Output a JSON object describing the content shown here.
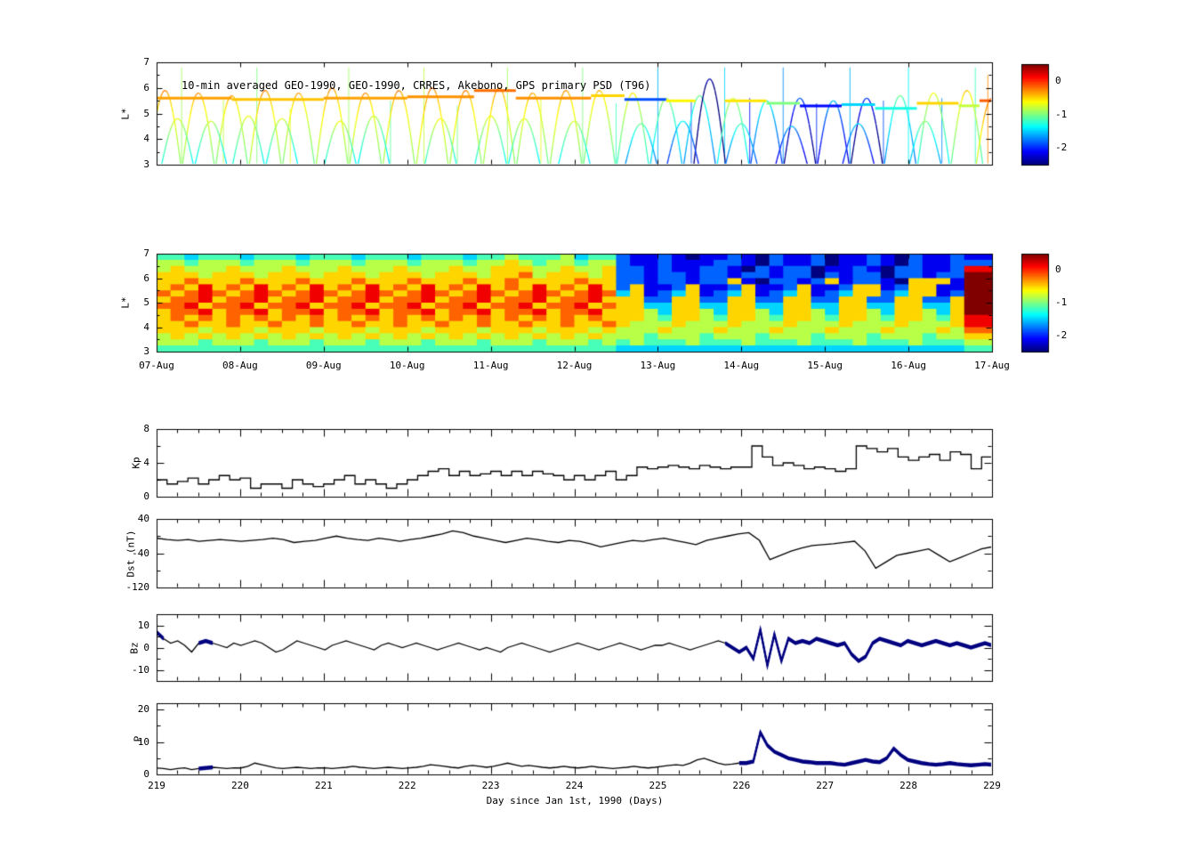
{
  "colors": {
    "line": "#000000",
    "thick_line": "#000080",
    "axis": "#000000",
    "background": "#ffffff"
  },
  "chart_data": [
    {
      "type": "scatter",
      "title": "10-min averaged GEO-1990, GEO-1990, CRRES, Akebono, GPS  primary PSD (T96)",
      "ylabel": "L*",
      "ylim": [
        3,
        7
      ],
      "yticks": [
        3,
        4,
        5,
        6,
        7
      ],
      "xlim": [
        219,
        229
      ],
      "clim": [
        -2.5,
        0.5
      ],
      "colorbar_ticks": [
        0,
        -1,
        -2
      ],
      "arcs": [
        [
          219.1,
          5.9,
          -0.2
        ],
        [
          219.5,
          5.8,
          -0.25
        ],
        [
          219.9,
          5.7,
          -0.3
        ],
        [
          220.3,
          5.9,
          -0.2
        ],
        [
          220.7,
          5.8,
          -0.3
        ],
        [
          221.1,
          6.0,
          -0.2
        ],
        [
          221.5,
          5.8,
          -0.25
        ],
        [
          221.9,
          5.9,
          -0.2
        ],
        [
          222.3,
          6.0,
          -0.15
        ],
        [
          222.7,
          5.9,
          -0.2
        ],
        [
          223.1,
          6.0,
          -0.2
        ],
        [
          223.5,
          5.8,
          -0.3
        ],
        [
          223.9,
          5.9,
          -0.25
        ],
        [
          224.3,
          5.9,
          -0.35
        ],
        [
          224.7,
          5.8,
          -0.5
        ],
        [
          225.1,
          5.6,
          -0.8
        ],
        [
          225.5,
          5.7,
          -1.0
        ],
        [
          225.62,
          6.35,
          -2.3
        ],
        [
          225.9,
          5.6,
          -0.7
        ],
        [
          226.3,
          5.5,
          -1.2
        ],
        [
          226.7,
          5.6,
          -1.8
        ],
        [
          227.1,
          5.5,
          -1.5
        ],
        [
          227.5,
          5.6,
          -1.9
        ],
        [
          227.9,
          5.7,
          -1.0
        ],
        [
          228.3,
          5.8,
          -0.6
        ],
        [
          228.7,
          5.9,
          -0.4
        ],
        [
          229.0,
          5.6,
          -0.1
        ],
        [
          219.25,
          4.8,
          -0.6
        ],
        [
          219.65,
          4.7,
          -0.7
        ],
        [
          220.1,
          4.9,
          -0.6
        ],
        [
          220.5,
          4.8,
          -0.65
        ],
        [
          221.2,
          4.7,
          -0.6
        ],
        [
          221.6,
          4.9,
          -0.7
        ],
        [
          222.4,
          4.8,
          -0.55
        ],
        [
          223.0,
          4.9,
          -0.6
        ],
        [
          223.4,
          4.8,
          -0.65
        ],
        [
          224.0,
          4.7,
          -0.7
        ],
        [
          224.8,
          4.6,
          -1.0
        ],
        [
          225.3,
          4.7,
          -1.3
        ],
        [
          226.0,
          4.6,
          -1.1
        ],
        [
          226.6,
          4.5,
          -1.5
        ],
        [
          227.4,
          4.6,
          -1.4
        ],
        [
          228.2,
          4.7,
          -0.9
        ]
      ],
      "geo_segments": [
        [
          219.0,
          219.9,
          5.6,
          -0.35
        ],
        [
          219.9,
          221.0,
          5.55,
          -0.45
        ],
        [
          221.0,
          222.0,
          5.6,
          -0.35
        ],
        [
          222.0,
          222.8,
          5.65,
          -0.3
        ],
        [
          222.8,
          223.3,
          5.9,
          -0.2
        ],
        [
          223.3,
          224.2,
          5.6,
          -0.3
        ],
        [
          224.2,
          224.6,
          5.7,
          -0.5
        ],
        [
          224.6,
          225.1,
          5.55,
          -1.9
        ],
        [
          225.1,
          225.45,
          5.5,
          -0.6
        ],
        [
          225.8,
          226.3,
          5.5,
          -0.55
        ],
        [
          226.3,
          226.7,
          5.4,
          -1.0
        ],
        [
          226.7,
          227.2,
          5.3,
          -2.1
        ],
        [
          227.2,
          227.6,
          5.35,
          -1.5
        ],
        [
          227.6,
          228.1,
          5.2,
          -1.3
        ],
        [
          228.1,
          228.6,
          5.4,
          -0.5
        ],
        [
          228.6,
          228.85,
          5.3,
          -0.8
        ],
        [
          228.85,
          229.0,
          5.5,
          -0.15
        ]
      ],
      "spikes": [
        [
          219.3,
          -0.9,
          6.8
        ],
        [
          219.8,
          -0.8,
          5.6
        ],
        [
          220.2,
          -1.0,
          6.8
        ],
        [
          220.6,
          -0.7,
          5.2
        ],
        [
          221.3,
          -0.9,
          6.8
        ],
        [
          221.8,
          -1.1,
          5.5
        ],
        [
          222.2,
          -0.8,
          6.8
        ],
        [
          222.6,
          -1.0,
          5.3
        ],
        [
          223.2,
          -0.9,
          6.8
        ],
        [
          223.6,
          -0.7,
          5.6
        ],
        [
          224.1,
          -1.0,
          6.8
        ],
        [
          224.5,
          -1.2,
          5.4
        ],
        [
          225.0,
          -1.6,
          6.8
        ],
        [
          225.4,
          -1.9,
          5.5
        ],
        [
          225.8,
          -1.5,
          6.8
        ],
        [
          226.1,
          -2.1,
          5.6
        ],
        [
          226.5,
          -1.7,
          6.8
        ],
        [
          226.9,
          -2.0,
          5.4
        ],
        [
          227.3,
          -1.6,
          6.8
        ],
        [
          227.7,
          -1.9,
          5.5
        ],
        [
          228.0,
          -1.4,
          6.8
        ],
        [
          228.4,
          -1.7,
          5.6
        ],
        [
          228.8,
          -1.2,
          6.8
        ],
        [
          228.95,
          -0.3,
          6.5
        ]
      ]
    },
    {
      "type": "heatmap",
      "ylabel": "L*",
      "ylim": [
        3,
        7
      ],
      "yticks": [
        3,
        4,
        5,
        6,
        7
      ],
      "xlim": [
        219,
        229
      ],
      "clim": [
        -2.5,
        0.5
      ],
      "colorbar_ticks": [
        0,
        -1,
        -2
      ],
      "xtick_labels": [
        "07-Aug",
        "08-Aug",
        "09-Aug",
        "10-Aug",
        "11-Aug",
        "12-Aug",
        "13-Aug",
        "14-Aug",
        "15-Aug",
        "16-Aug",
        "17-Aug"
      ],
      "value_min": -2.5,
      "value_step": 0.33333,
      "grid_rows": [
        "443444344434443444344434454445344211210112102112011210211211",
        "554555455545554555455545565455455211211122102112011210211222",
        "565556555655565556555655666556556221211221021220112102211288",
        "666566656665666566656665667566656221221221221220212202212299",
        "667666766676667666766676676666766221221226102212612210666199",
        "676867686768676867686768676867686261126112611261126612661199",
        "767876787678767876787678767876787361236123612361236623661299",
        "677867786778677867786778677867786662266226622662266226622699",
        "778677867786778677867786778677867663366336633663366336633699",
        "677867786778677867786778677867786665366536653665366536653699",
        "676767676767676767676767676767676665466546654665466546654688",
        "667667667667667667667667667667667655565556555655565556555688",
        "666566656665666566656665666566656555655565556555655565556577",
        "565656565656565656565656565656565554555455545554555455545566",
        "555455545554555455545554555455545454445444544454445444544455",
        "444444444444444444444444444444444333333333333333333333333344"
      ]
    },
    {
      "type": "line",
      "ylabel": "Kp",
      "ylim": [
        0,
        8
      ],
      "yticks": [
        0,
        4,
        8
      ],
      "xlim": [
        219,
        229
      ],
      "step": true,
      "values": [
        2,
        1.5,
        1.8,
        2.2,
        1.5,
        2,
        2.5,
        2,
        2.2,
        1,
        1.5,
        1.5,
        1,
        2,
        1.5,
        1.2,
        1.5,
        2,
        2.5,
        1.5,
        2,
        1.5,
        1,
        1.5,
        2,
        2.5,
        3,
        3.3,
        2.5,
        3,
        2.5,
        2.7,
        3,
        2.5,
        3,
        2.5,
        3,
        2.7,
        2.5,
        2,
        2.5,
        2,
        2.5,
        3,
        2,
        2.5,
        3.5,
        3.3,
        3.5,
        3.7,
        3.5,
        3.3,
        3.7,
        3.5,
        3.3,
        3.5,
        3.5,
        6,
        4.7,
        3.7,
        4,
        3.7,
        3.3,
        3.5,
        3.3,
        3,
        3.3,
        6,
        5.7,
        5.3,
        5.7,
        4.7,
        4.3,
        4.7,
        5,
        4.3,
        5.3,
        5,
        3.3,
        4.7
      ]
    },
    {
      "type": "line",
      "ylabel": "Dst (nT)",
      "ylim": [
        -120,
        40
      ],
      "yticks": [
        40,
        -40,
        -120
      ],
      "xlim": [
        219,
        229
      ],
      "values": [
        -5,
        -8,
        -10,
        -8,
        -12,
        -10,
        -8,
        -10,
        -12,
        -10,
        -8,
        -5,
        -8,
        -15,
        -12,
        -10,
        -5,
        0,
        -5,
        -8,
        -10,
        -5,
        -8,
        -12,
        -8,
        -5,
        0,
        5,
        12,
        8,
        0,
        -5,
        -10,
        -15,
        -10,
        -5,
        -8,
        -12,
        -15,
        -10,
        -12,
        -18,
        -25,
        -20,
        -15,
        -10,
        -12,
        -8,
        -5,
        -10,
        -15,
        -20,
        -10,
        -5,
        0,
        5,
        8,
        -10,
        -55,
        -45,
        -35,
        -28,
        -22,
        -20,
        -18,
        -15,
        -12,
        -35,
        -75,
        -60,
        -45,
        -40,
        -35,
        -30,
        -45,
        -60,
        -50,
        -40,
        -30,
        -25
      ]
    },
    {
      "type": "line",
      "ylabel": "Bz",
      "ylim": [
        -15,
        15
      ],
      "yticks": [
        10,
        0,
        -10
      ],
      "xlim": [
        219,
        229
      ],
      "thick_color": "#000080",
      "thick_ranges": [
        [
          218.98,
          219.12
        ],
        [
          219.5,
          219.68
        ],
        [
          225.78,
          229
        ]
      ],
      "values": [
        7,
        4,
        2,
        3,
        1,
        -2,
        2,
        3,
        2,
        1,
        0,
        2,
        1,
        2,
        3,
        2,
        0,
        -2,
        -1,
        1,
        3,
        2,
        1,
        0,
        -1,
        1,
        2,
        3,
        2,
        1,
        0,
        -1,
        1,
        2,
        1,
        0,
        1,
        2,
        1,
        0,
        -1,
        0,
        1,
        2,
        1,
        0,
        -1,
        0,
        -1,
        -2,
        0,
        1,
        2,
        1,
        0,
        -1,
        -2,
        -1,
        0,
        1,
        2,
        1,
        0,
        -1,
        0,
        1,
        2,
        1,
        0,
        -1,
        0,
        1,
        1,
        2,
        1,
        0,
        -1,
        0,
        1,
        2,
        3,
        2,
        0,
        -2,
        0,
        -5,
        8,
        -8,
        6,
        -6,
        4,
        2,
        3,
        2,
        4,
        3,
        2,
        1,
        2,
        -3,
        -6,
        -4,
        2,
        4,
        3,
        2,
        1,
        3,
        2,
        1,
        2,
        3,
        2,
        1,
        2,
        1,
        0,
        1,
        2,
        1
      ]
    },
    {
      "type": "line",
      "ylabel": "P",
      "ylim": [
        0,
        22
      ],
      "yticks": [
        20,
        10,
        0
      ],
      "xlim": [
        219,
        229
      ],
      "thick_color": "#000080",
      "thick_ranges": [
        [
          219.5,
          219.68
        ],
        [
          225.9,
          229
        ]
      ],
      "xlabel": "Day since Jan 1st, 1990 (Days)",
      "xtick_labels": [
        "219",
        "220",
        "221",
        "222",
        "223",
        "224",
        "225",
        "226",
        "227",
        "228",
        "229"
      ],
      "values": [
        2,
        1.8,
        1.5,
        1.8,
        2,
        1.5,
        1.8,
        2,
        2.2,
        2,
        1.8,
        2,
        2,
        2.5,
        3.5,
        3,
        2.5,
        2,
        1.8,
        2,
        2.2,
        2,
        1.8,
        2,
        2,
        1.8,
        2,
        2.2,
        2.5,
        2.2,
        2,
        1.8,
        2,
        2.2,
        2,
        1.8,
        2,
        2.2,
        2.5,
        3,
        2.8,
        2.5,
        2.2,
        2,
        2.5,
        2.8,
        2.5,
        2.2,
        2.5,
        3,
        3.5,
        3,
        2.5,
        2.8,
        2.5,
        2.2,
        2,
        2.2,
        2.5,
        2.2,
        2,
        2.2,
        2.5,
        2.2,
        2,
        1.8,
        2,
        2.2,
        2.5,
        2.2,
        2,
        2.2,
        2.5,
        2.8,
        3,
        2.8,
        3.5,
        4.5,
        5,
        4.2,
        3.5,
        3,
        3.2,
        3.5,
        3.5,
        4,
        13,
        9,
        7,
        6,
        5,
        4.5,
        4,
        3.8,
        3.5,
        3.5,
        3.5,
        3.2,
        3,
        3.5,
        4,
        4.5,
        4,
        3.8,
        5,
        8,
        6,
        4.5,
        4,
        3.5,
        3.2,
        3,
        3.2,
        3.5,
        3.2,
        3,
        2.8,
        3,
        3.2,
        3
      ]
    }
  ]
}
